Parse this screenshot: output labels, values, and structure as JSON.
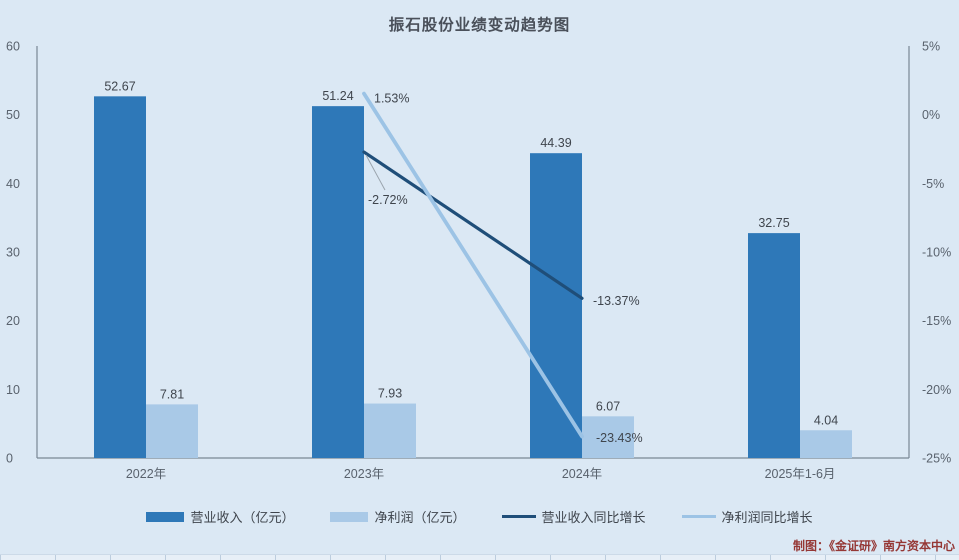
{
  "title": "振石股份业绩变动趋势图",
  "credit": "制图：《金证研》南方资本中心",
  "colors": {
    "background": "#dbe8f4",
    "revenue_bar": "#2e78b8",
    "profit_bar": "#a9c9e7",
    "revenue_line": "#1f4e79",
    "profit_line": "#9cc3e5",
    "axis": "#7a8795",
    "axis_text": "#59626d",
    "label_text": "#3f454d",
    "title_text": "#4a505a",
    "credit_text": "#953735"
  },
  "chart_data": {
    "type": "bar+line combo",
    "title": "振石股份业绩变动趋势图",
    "categories": [
      "2022年",
      "2023年",
      "2024年",
      "2025年1-6月"
    ],
    "bar_series": [
      {
        "name": "营业收入（亿元）",
        "values": [
          52.67,
          51.24,
          44.39,
          32.75
        ],
        "labels": [
          "52.67",
          "51.24",
          "44.39",
          "32.75"
        ]
      },
      {
        "name": "净利润（亿元）",
        "values": [
          7.81,
          7.93,
          6.07,
          4.04
        ],
        "labels": [
          "7.81",
          "7.93",
          "6.07",
          "4.04"
        ]
      }
    ],
    "line_series": [
      {
        "name": "营业收入同比增长",
        "values": [
          null,
          -2.72,
          -13.37,
          null
        ],
        "labels": [
          null,
          "-2.72%",
          "-13.37%",
          null
        ]
      },
      {
        "name": "净利润同比增长",
        "values": [
          null,
          1.53,
          -23.43,
          null
        ],
        "labels": [
          null,
          "1.53%",
          "-23.43%",
          null
        ]
      }
    ],
    "left_axis": {
      "min": 0,
      "max": 60,
      "ticks": [
        "60",
        "50",
        "40",
        "30",
        "20",
        "10",
        "0"
      ]
    },
    "right_axis": {
      "min": -25,
      "max": 5,
      "ticks": [
        "5%",
        "0%",
        "-5%",
        "-10%",
        "-15%",
        "-20%",
        "-25%"
      ]
    },
    "grid": false,
    "legend_position": "bottom"
  }
}
